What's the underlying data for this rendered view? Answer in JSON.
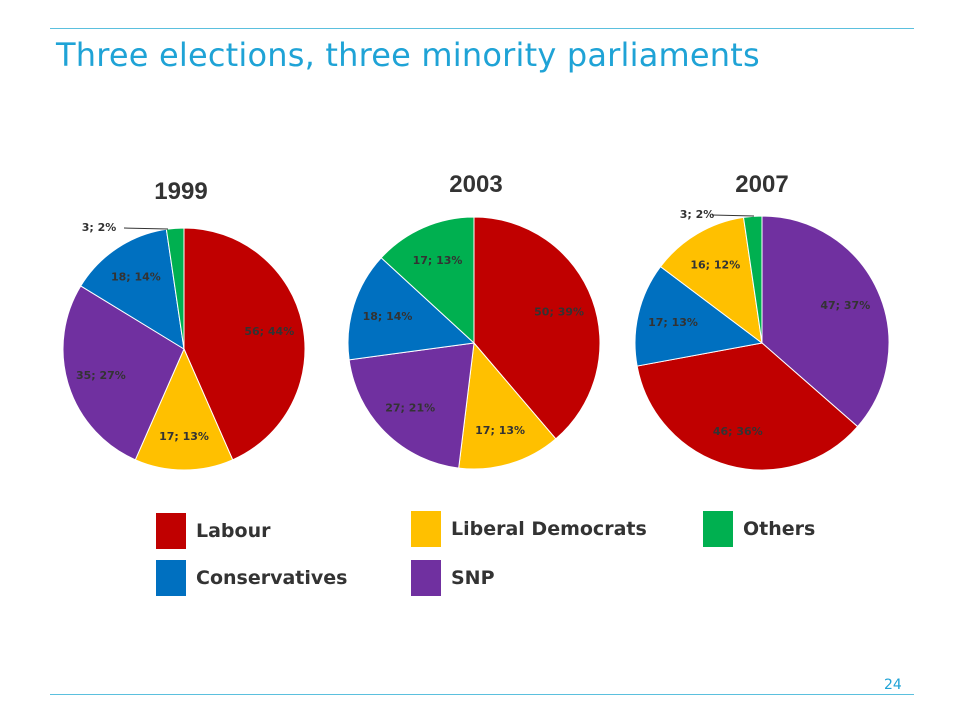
{
  "slide": {
    "title": "Three elections, three minority parliaments",
    "page_number": "24"
  },
  "colors": {
    "Labour": "#c00000",
    "Liberal Democrats": "#ffc000",
    "Others": "#00b050",
    "Conservatives": "#0070c0",
    "SNP": "#7030a0"
  },
  "legend": {
    "items": [
      {
        "name": "Labour",
        "color": "#c00000"
      },
      {
        "name": "Liberal Democrats",
        "color": "#ffc000"
      },
      {
        "name": "Others",
        "color": "#00b050"
      },
      {
        "name": "Conservatives",
        "color": "#0070c0"
      },
      {
        "name": "SNP",
        "color": "#7030a0"
      }
    ]
  },
  "chart_data": [
    {
      "type": "pie",
      "title": "1999",
      "slices": [
        {
          "party": "Labour",
          "value": 56,
          "label": "56; 44%"
        },
        {
          "party": "Liberal Democrats",
          "value": 17,
          "label": "17; 13%"
        },
        {
          "party": "SNP",
          "value": 35,
          "label": "35; 27%"
        },
        {
          "party": "Conservatives",
          "value": 18,
          "label": "18; 14%"
        },
        {
          "party": "Others",
          "value": 3,
          "label": "3; 2%"
        }
      ]
    },
    {
      "type": "pie",
      "title": "2003",
      "slices": [
        {
          "party": "Labour",
          "value": 50,
          "label": "50; 39%"
        },
        {
          "party": "Liberal Democrats",
          "value": 17,
          "label": "17; 13%"
        },
        {
          "party": "SNP",
          "value": 27,
          "label": "27; 21%"
        },
        {
          "party": "Conservatives",
          "value": 18,
          "label": "18; 14%"
        },
        {
          "party": "Others",
          "value": 17,
          "label": "17; 13%"
        }
      ]
    },
    {
      "type": "pie",
      "title": "2007",
      "slices": [
        {
          "party": "SNP",
          "value": 47,
          "label": "47; 37%"
        },
        {
          "party": "Labour",
          "value": 46,
          "label": "46; 36%"
        },
        {
          "party": "Conservatives",
          "value": 17,
          "label": "17; 13%"
        },
        {
          "party": "Liberal Democrats",
          "value": 16,
          "label": "16; 12%"
        },
        {
          "party": "Others",
          "value": 3,
          "label": "3; 2%"
        }
      ]
    }
  ]
}
